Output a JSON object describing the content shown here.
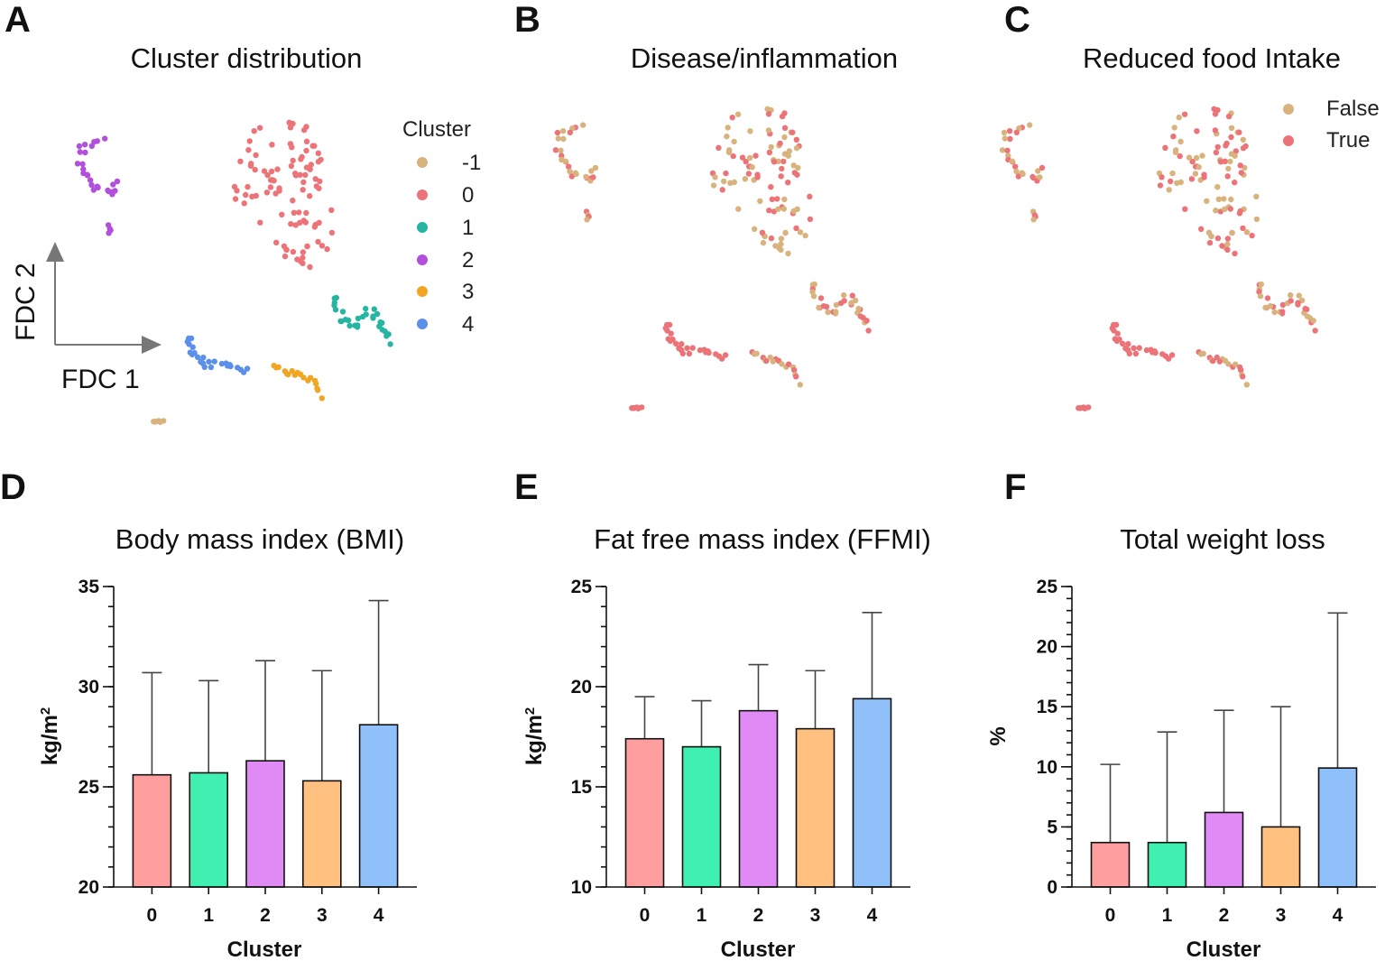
{
  "panels": {
    "A": {
      "letter": "A",
      "title": "Cluster distribution"
    },
    "B": {
      "letter": "B",
      "title": "Disease/inflammation"
    },
    "C": {
      "letter": "C",
      "title": "Reduced food Intake"
    },
    "D": {
      "letter": "D",
      "title": "Body mass index (BMI)"
    },
    "E": {
      "letter": "E",
      "title": "Fat free mass index (FFMI)"
    },
    "F": {
      "letter": "F",
      "title": "Total weight loss"
    }
  },
  "axes_arrows": {
    "x_label": "FDC 1",
    "y_label": "FDC 2"
  },
  "cluster_legend": {
    "title": "Cluster",
    "items": [
      {
        "label": "-1",
        "color": "#D8B37E"
      },
      {
        "label": "0",
        "color": "#EC7378"
      },
      {
        "label": "1",
        "color": "#27B5A3"
      },
      {
        "label": "2",
        "color": "#B24FDC"
      },
      {
        "label": "3",
        "color": "#F0A623"
      },
      {
        "label": "4",
        "color": "#5B8FEA"
      }
    ]
  },
  "binary_legend": {
    "items": [
      {
        "label": "False",
        "color": "#D8B37E"
      },
      {
        "label": "True",
        "color": "#EC7378"
      }
    ]
  },
  "chart_data": [
    {
      "panel": "D",
      "type": "bar",
      "title": "Body mass index (BMI)",
      "xlabel": "Cluster",
      "ylabel": "kg/m",
      "ylabel_superscript": "2",
      "categories": [
        "0",
        "1",
        "2",
        "3",
        "4"
      ],
      "values": [
        25.6,
        25.7,
        26.3,
        25.3,
        28.1
      ],
      "error_upper": [
        30.7,
        30.3,
        31.3,
        30.8,
        34.3
      ],
      "ylim": [
        20,
        35
      ],
      "yticks": [
        20,
        25,
        30,
        35
      ],
      "minor_step": 1,
      "colors": [
        "#FF9E9E",
        "#40F0B0",
        "#E08AF6",
        "#FFC080",
        "#90C0FA"
      ]
    },
    {
      "panel": "E",
      "type": "bar",
      "title": "Fat free mass index (FFMI)",
      "xlabel": "Cluster",
      "ylabel": "kg/m",
      "ylabel_superscript": "2",
      "categories": [
        "0",
        "1",
        "2",
        "3",
        "4"
      ],
      "values": [
        17.4,
        17.0,
        18.8,
        17.9,
        19.4
      ],
      "error_upper": [
        19.5,
        19.3,
        21.1,
        20.8,
        23.7
      ],
      "ylim": [
        10,
        25
      ],
      "yticks": [
        10,
        15,
        20,
        25
      ],
      "minor_step": 1,
      "colors": [
        "#FF9E9E",
        "#40F0B0",
        "#E08AF6",
        "#FFC080",
        "#90C0FA"
      ]
    },
    {
      "panel": "F",
      "type": "bar",
      "title": "Total weight loss",
      "xlabel": "Cluster",
      "ylabel": "%",
      "ylabel_superscript": "",
      "categories": [
        "0",
        "1",
        "2",
        "3",
        "4"
      ],
      "values": [
        3.7,
        3.7,
        6.2,
        5.0,
        9.9
      ],
      "error_upper": [
        10.2,
        12.9,
        14.7,
        15.0,
        22.8
      ],
      "ylim": [
        0,
        25
      ],
      "yticks": [
        0,
        5,
        10,
        15,
        20,
        25
      ],
      "minor_step": 1,
      "colors": [
        "#FF9E9E",
        "#40F0B0",
        "#E08AF6",
        "#FFC080",
        "#90C0FA"
      ]
    }
  ]
}
